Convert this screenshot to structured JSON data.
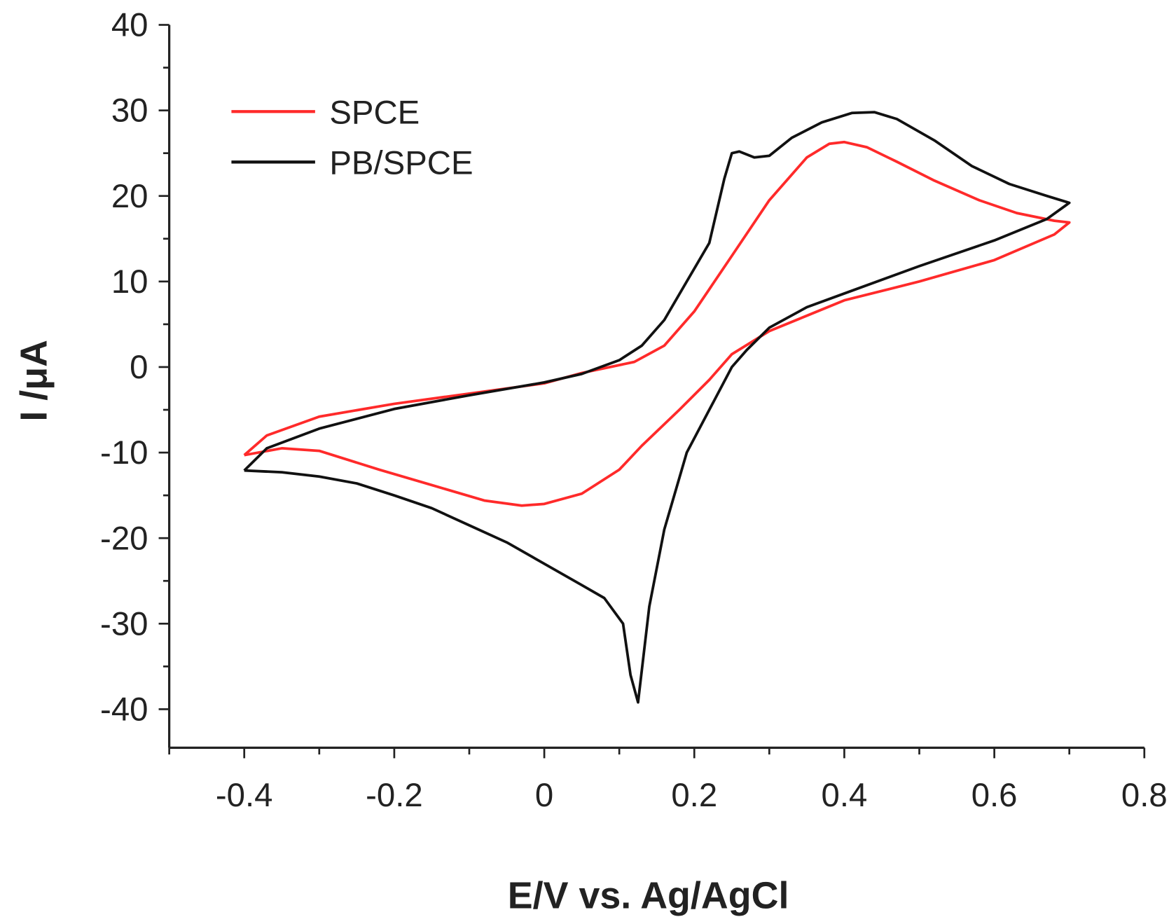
{
  "chart_data": {
    "type": "line",
    "title": "",
    "xlabel": "E/V vs. Ag/AgCl",
    "ylabel": "I /μA",
    "xlim": [
      -0.5,
      0.8
    ],
    "ylim": [
      -44.5,
      40
    ],
    "x_ticks": [
      -0.4,
      -0.2,
      0,
      0.2,
      0.4,
      0.6,
      0.8
    ],
    "x_tick_labels": [
      "-0.4",
      "-0.2",
      "0",
      "0.2",
      "0.4",
      "0.6",
      "0.8"
    ],
    "y_ticks": [
      40,
      30,
      20,
      10,
      0,
      -10,
      -20,
      -30,
      -40
    ],
    "y_tick_labels": [
      "40",
      "30",
      "20",
      "10",
      "0",
      "-10",
      "-20",
      "-30",
      "-40"
    ],
    "grid": false,
    "legend_position": "top-left",
    "series": [
      {
        "name": "SPCE",
        "color": "#ff2a2a",
        "points": [
          [
            -0.4,
            -10.3
          ],
          [
            -0.37,
            -8
          ],
          [
            -0.3,
            -5.8
          ],
          [
            -0.2,
            -4.3
          ],
          [
            -0.1,
            -3.1
          ],
          [
            0,
            -1.9
          ],
          [
            0.05,
            -0.7
          ],
          [
            0.12,
            0.6
          ],
          [
            0.16,
            2.5
          ],
          [
            0.2,
            6.5
          ],
          [
            0.25,
            13
          ],
          [
            0.3,
            19.5
          ],
          [
            0.35,
            24.5
          ],
          [
            0.38,
            26.1
          ],
          [
            0.4,
            26.3
          ],
          [
            0.43,
            25.7
          ],
          [
            0.47,
            24
          ],
          [
            0.52,
            21.8
          ],
          [
            0.58,
            19.5
          ],
          [
            0.63,
            18
          ],
          [
            0.68,
            17.1
          ],
          [
            0.7,
            16.9
          ],
          [
            0.68,
            15.5
          ],
          [
            0.6,
            12.5
          ],
          [
            0.5,
            10
          ],
          [
            0.4,
            7.8
          ],
          [
            0.3,
            4.2
          ],
          [
            0.25,
            1.5
          ],
          [
            0.22,
            -1.5
          ],
          [
            0.18,
            -5
          ],
          [
            0.13,
            -9.2
          ],
          [
            0.1,
            -12
          ],
          [
            0.05,
            -14.8
          ],
          [
            0,
            -16
          ],
          [
            -0.03,
            -16.2
          ],
          [
            -0.08,
            -15.6
          ],
          [
            -0.15,
            -13.8
          ],
          [
            -0.22,
            -12
          ],
          [
            -0.3,
            -9.8
          ],
          [
            -0.35,
            -9.5
          ],
          [
            -0.4,
            -10.3
          ]
        ]
      },
      {
        "name": "PB/SPCE",
        "color": "#111111",
        "points": [
          [
            -0.4,
            -12.1
          ],
          [
            -0.37,
            -9.5
          ],
          [
            -0.3,
            -7.2
          ],
          [
            -0.2,
            -4.9
          ],
          [
            -0.1,
            -3.3
          ],
          [
            0,
            -1.8
          ],
          [
            0.05,
            -0.8
          ],
          [
            0.1,
            0.8
          ],
          [
            0.13,
            2.5
          ],
          [
            0.16,
            5.5
          ],
          [
            0.19,
            10
          ],
          [
            0.22,
            14.5
          ],
          [
            0.24,
            22
          ],
          [
            0.25,
            25
          ],
          [
            0.26,
            25.2
          ],
          [
            0.28,
            24.5
          ],
          [
            0.3,
            24.7
          ],
          [
            0.33,
            26.8
          ],
          [
            0.37,
            28.6
          ],
          [
            0.41,
            29.7
          ],
          [
            0.44,
            29.8
          ],
          [
            0.47,
            29
          ],
          [
            0.52,
            26.5
          ],
          [
            0.57,
            23.5
          ],
          [
            0.62,
            21.4
          ],
          [
            0.67,
            20
          ],
          [
            0.7,
            19.2
          ],
          [
            0.67,
            17.3
          ],
          [
            0.6,
            14.8
          ],
          [
            0.5,
            11.8
          ],
          [
            0.4,
            8.6
          ],
          [
            0.35,
            7
          ],
          [
            0.3,
            4.6
          ],
          [
            0.27,
            2
          ],
          [
            0.25,
            0
          ],
          [
            0.22,
            -5
          ],
          [
            0.19,
            -10
          ],
          [
            0.16,
            -19
          ],
          [
            0.14,
            -28
          ],
          [
            0.125,
            -39.2
          ],
          [
            0.115,
            -36
          ],
          [
            0.105,
            -30
          ],
          [
            0.08,
            -27
          ],
          [
            0.05,
            -25.5
          ],
          [
            0,
            -23
          ],
          [
            -0.05,
            -20.5
          ],
          [
            -0.1,
            -18.5
          ],
          [
            -0.15,
            -16.5
          ],
          [
            -0.2,
            -15
          ],
          [
            -0.25,
            -13.6
          ],
          [
            -0.3,
            -12.8
          ],
          [
            -0.35,
            -12.3
          ],
          [
            -0.4,
            -12.1
          ]
        ]
      }
    ]
  }
}
